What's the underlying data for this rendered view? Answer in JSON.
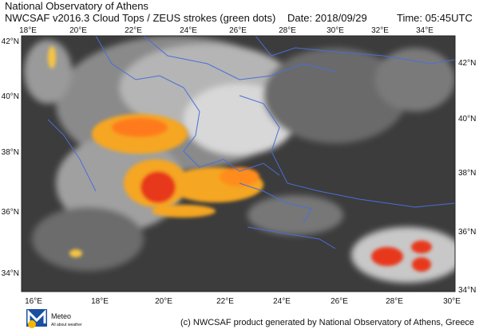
{
  "header": {
    "line1": "National Observatory of Athens",
    "line2": "NWCSAF v2016.3 Cloud Tops / ZEUS strokes (green dots)",
    "date": "Date: 2018/09/29",
    "time": "Time: 05:45UTC"
  },
  "map": {
    "top_lon_labels": [
      "18°E",
      "20°E",
      "22°E",
      "24°E",
      "26°E",
      "28°E",
      "30°E",
      "32°E",
      "34°E"
    ],
    "bottom_lon_labels": [
      "16°E",
      "18°E",
      "20°E",
      "22°E",
      "24°E",
      "26°E",
      "28°E",
      "30°E"
    ],
    "left_lat_labels": [
      "42°N",
      "40°N",
      "38°N",
      "36°N",
      "34°N"
    ],
    "right_lat_labels": [
      "42°N",
      "40°N",
      "38°N",
      "36°N",
      "34°N"
    ]
  },
  "footer": {
    "logo": "Meteo",
    "logo_sub": "All about weather",
    "credit": "(c) NWCSAF product generated by National Observatory of Athens, Greece"
  }
}
